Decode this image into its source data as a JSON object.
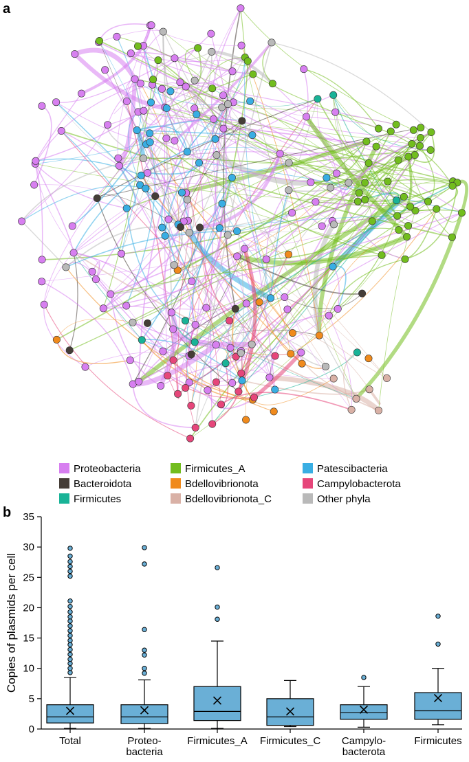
{
  "panels": {
    "a": "a",
    "b": "b"
  },
  "legend": [
    {
      "label": "Proteobacteria",
      "color": "#d77ff0"
    },
    {
      "label": "Firmicutes_A",
      "color": "#72bd1e"
    },
    {
      "label": "Patescibacteria",
      "color": "#39aee3"
    },
    {
      "label": "Bacteroidota",
      "color": "#453d37"
    },
    {
      "label": "Bdellovibrionota",
      "color": "#f08a1c"
    },
    {
      "label": "Campylobacterota",
      "color": "#e6467a"
    },
    {
      "label": "Firmicutes",
      "color": "#19b397"
    },
    {
      "label": "Bdellovibrionota_C",
      "color": "#d9b1a6"
    },
    {
      "label": "Other phyla",
      "color": "#b9b9b9"
    }
  ],
  "chart_data": [
    {
      "type": "network",
      "description_series": [
        "Proteobacteria",
        "Firmicutes_A",
        "Patescibacteria",
        "Bacteroidota",
        "Bdellovibrionota",
        "Campylobacterota",
        "Firmicutes",
        "Bdellovibrionota_C",
        "Other phyla"
      ]
    },
    {
      "type": "box",
      "ylabel": "Copies of plasmids per cell",
      "ylim": [
        0,
        35
      ],
      "yticks": [
        0,
        5,
        10,
        15,
        20,
        25,
        30,
        35
      ],
      "box_color": "#6aafd6",
      "categories": [
        [
          "Total"
        ],
        [
          "Proteo-",
          "bacteria"
        ],
        [
          "Firmicutes_A"
        ],
        [
          "Firmicutes_C"
        ],
        [
          "Campylo-",
          "bacterota"
        ],
        [
          "Firmicutes"
        ]
      ],
      "stats": [
        {
          "min": 0.1,
          "q1": 1.0,
          "median": 2.0,
          "q3": 4.0,
          "max": 8.5,
          "mean": 3.0,
          "outliers": [
            9.3,
            10.0,
            10.8,
            11.5,
            12.3,
            13.1,
            13.9,
            14.6,
            15.4,
            16.2,
            17.0,
            17.8,
            18.5,
            19.3,
            20.2,
            21.1,
            25.2,
            26.0,
            26.8,
            27.6,
            28.5,
            29.8
          ]
        },
        {
          "min": 0.1,
          "q1": 0.9,
          "median": 2.0,
          "q3": 4.0,
          "max": 8.1,
          "mean": 3.1,
          "outliers": [
            9.2,
            10.0,
            12.2,
            13.0,
            16.4,
            27.2,
            29.9
          ]
        },
        {
          "min": 0.1,
          "q1": 1.4,
          "median": 2.9,
          "q3": 7.0,
          "max": 14.5,
          "mean": 4.7,
          "outliers": [
            18.1,
            20.1,
            26.6
          ]
        },
        {
          "min": 0.4,
          "q1": 0.6,
          "median": 2.0,
          "q3": 5.0,
          "max": 8.0,
          "mean": 2.9,
          "outliers": []
        },
        {
          "min": 0.3,
          "q1": 1.6,
          "median": 2.7,
          "q3": 4.0,
          "max": 7.0,
          "mean": 3.2,
          "outliers": [
            8.5
          ]
        },
        {
          "min": 0.7,
          "q1": 1.6,
          "median": 3.0,
          "q3": 6.0,
          "max": 10.0,
          "mean": 5.1,
          "outliers": [
            14.0,
            18.6
          ]
        }
      ]
    }
  ]
}
